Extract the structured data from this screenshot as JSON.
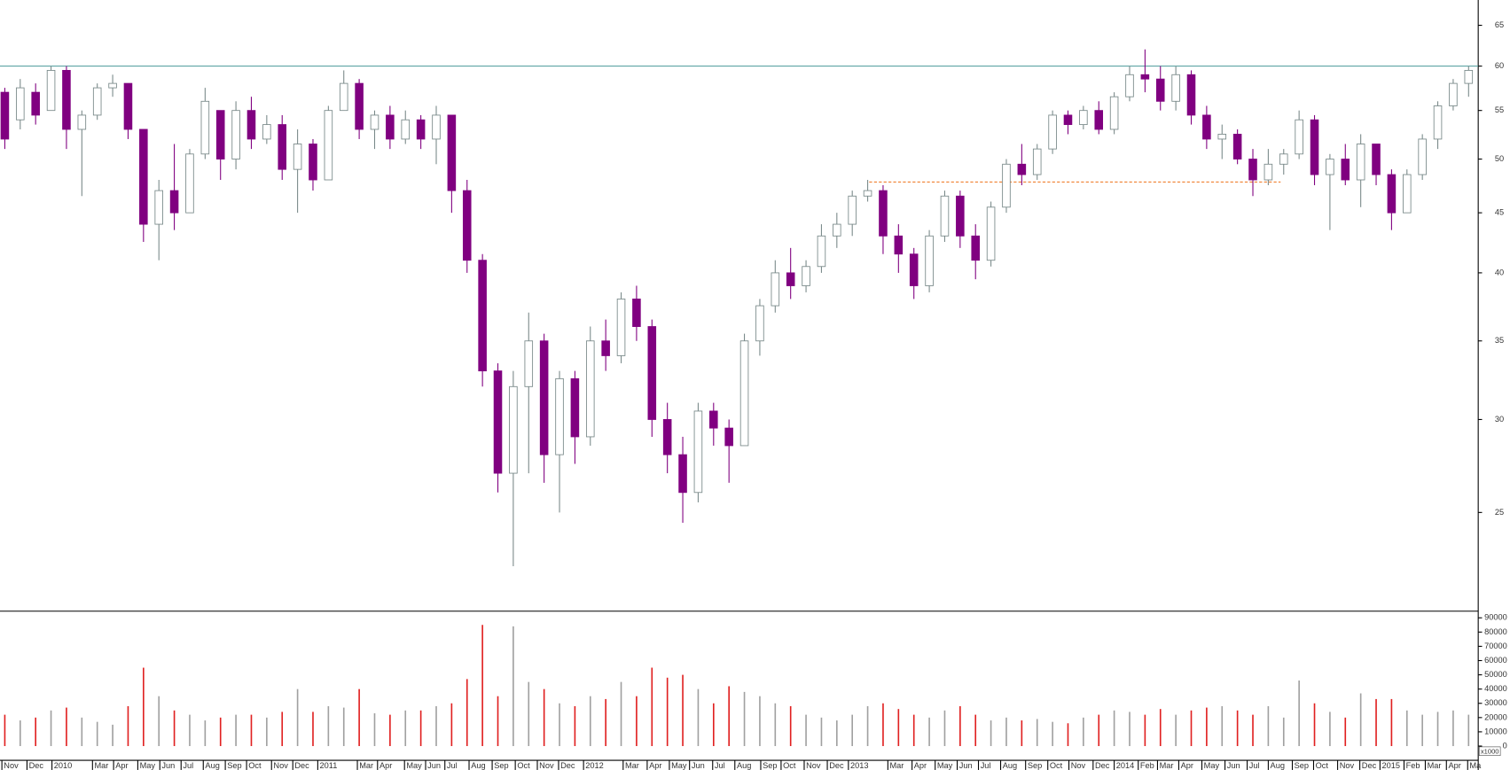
{
  "chart_data": [
    {
      "type": "candlestick",
      "log": true,
      "xlim": [
        -0.3125,
        95.625
      ],
      "ylim": [
        20.6,
        68.3
      ],
      "yticks": [
        25,
        30,
        35,
        40,
        45,
        50,
        55,
        60,
        65
      ],
      "up_color": "#ffffff",
      "down_color": "#800080",
      "edge_color": "#7a8a8a",
      "open": [
        57,
        54,
        57,
        55,
        59.5,
        53,
        54.5,
        57.5,
        58,
        53,
        44,
        47,
        45,
        50.5,
        55,
        50,
        55,
        52,
        53.5,
        49,
        51.5,
        48,
        55,
        58,
        53,
        54.5,
        52,
        54,
        52,
        54.5,
        47,
        41,
        33,
        27,
        32,
        35,
        28,
        32.5,
        29,
        35,
        34,
        38,
        36,
        30,
        28,
        26,
        30.5,
        29.5,
        28.5,
        35,
        37.5,
        40,
        39,
        40.5,
        43,
        44,
        46.5,
        47,
        43,
        41.5,
        39,
        43,
        46.5,
        43,
        41,
        45.5,
        49.5,
        48.5,
        51,
        54.5,
        53.5,
        55,
        53,
        56.5,
        59,
        58.5,
        56,
        59,
        54.5,
        52,
        52.5,
        50,
        48,
        49.5,
        50.5,
        54,
        48.5,
        50,
        48,
        51.5,
        48.5,
        45,
        48.5,
        52,
        55.5,
        58
      ],
      "high": [
        57.5,
        58.5,
        58,
        60,
        60,
        55,
        58,
        59,
        58,
        53,
        48,
        51.5,
        51,
        57.5,
        55,
        56,
        56.5,
        54.5,
        54.5,
        53,
        52,
        55.5,
        59.5,
        58.5,
        55,
        55.5,
        55,
        54.5,
        55.5,
        54.5,
        48,
        41.5,
        33.5,
        33,
        37,
        35.5,
        33,
        33,
        36,
        36.5,
        38.5,
        39,
        36.5,
        31,
        29,
        31,
        31,
        30,
        35.5,
        38,
        41,
        42,
        41,
        44,
        45,
        47,
        48,
        47.5,
        44,
        42,
        43.5,
        47,
        47,
        44,
        46,
        50,
        51.5,
        51.5,
        55,
        55,
        55.5,
        56,
        57,
        60,
        62,
        60,
        60,
        59.5,
        55.5,
        53.5,
        53,
        51,
        51,
        51,
        55,
        54.5,
        50.5,
        51.5,
        52.5,
        51.5,
        49,
        49,
        52.5,
        56,
        58.5,
        60
      ],
      "low": [
        51,
        53,
        53.5,
        55,
        51,
        46.5,
        54,
        56.5,
        52,
        42.5,
        41,
        43.5,
        45,
        50,
        48,
        49,
        51,
        51.5,
        48,
        45,
        47,
        48,
        55,
        52,
        51,
        51,
        51.5,
        51,
        49.5,
        45,
        40,
        32,
        26,
        22.5,
        27,
        26.5,
        25,
        27.5,
        28.5,
        33,
        33.5,
        35,
        29,
        27,
        24.5,
        25.5,
        28.5,
        26.5,
        28.5,
        34,
        37,
        38,
        38.5,
        40,
        42,
        43,
        46,
        41.5,
        40,
        38,
        38.5,
        42.5,
        42,
        39.5,
        40.5,
        45,
        47.5,
        48,
        50.5,
        52.5,
        53,
        52.5,
        52.5,
        56,
        57,
        55,
        55,
        53.5,
        51,
        50,
        49.5,
        46.5,
        47.5,
        48.5,
        50,
        47.5,
        43.5,
        47.5,
        45.5,
        47.5,
        43.5,
        45,
        48,
        51,
        55,
        56.5
      ],
      "close": [
        52,
        57.5,
        54.5,
        59.5,
        53,
        54.5,
        57.5,
        58,
        53,
        44,
        47,
        45,
        50.5,
        56,
        50,
        55,
        52,
        53.5,
        49,
        51.5,
        48,
        55,
        58,
        53,
        54.5,
        52,
        54,
        52,
        54.5,
        47,
        41,
        33,
        27,
        32,
        35,
        28,
        32.5,
        29,
        35,
        34,
        38,
        36,
        30,
        28,
        26,
        30.5,
        29.5,
        28.5,
        35,
        37.5,
        40,
        39,
        40.5,
        43,
        44,
        46.5,
        47,
        43,
        41.5,
        39,
        43,
        46.5,
        43,
        41,
        45.5,
        49.5,
        48.5,
        51,
        54.5,
        53.5,
        55,
        53,
        56.5,
        59,
        58.5,
        56,
        59,
        54.5,
        52,
        52.5,
        50,
        48,
        49.5,
        50.5,
        54,
        48.5,
        50,
        48,
        51.5,
        48.5,
        45,
        48.5,
        52,
        55.5,
        58,
        59.5
      ],
      "lines": [
        {
          "value": 60,
          "color": "#4a9a9a"
        },
        {
          "value": 47.8,
          "from": 56.1,
          "to": 82.8,
          "color": "#f08030",
          "dashed": true
        }
      ]
    },
    {
      "type": "bar",
      "xlim": [
        -0.3125,
        95.625
      ],
      "ylim": [
        -10000,
        94000
      ],
      "yticks": [
        0,
        10000,
        20000,
        30000,
        40000,
        50000,
        60000,
        70000,
        80000,
        90000
      ],
      "unit_label": "x1000",
      "up_color": "#a0a0a0",
      "down_color": "#e02020",
      "values": [
        22000,
        18000,
        20000,
        25000,
        27000,
        20000,
        17000,
        15000,
        28000,
        55000,
        35000,
        25000,
        22000,
        18000,
        20000,
        22000,
        22000,
        20000,
        24000,
        40000,
        24000,
        28000,
        27000,
        40000,
        23000,
        22000,
        25000,
        25000,
        28000,
        30000,
        47000,
        85000,
        35000,
        84000,
        45000,
        40000,
        30000,
        28000,
        35000,
        33000,
        45000,
        35000,
        55000,
        48000,
        50000,
        40000,
        30000,
        42000,
        38000,
        35000,
        30000,
        28000,
        22000,
        20000,
        18000,
        22000,
        28000,
        30000,
        26000,
        22000,
        20000,
        25000,
        28000,
        22000,
        18000,
        20000,
        18000,
        19000,
        17000,
        16000,
        20000,
        22000,
        25000,
        24000,
        22000,
        26000,
        22000,
        25000,
        27000,
        28000,
        25000,
        22000,
        28000,
        20000,
        46000,
        30000,
        24000,
        20000,
        37000,
        33000,
        33000,
        25000,
        22000,
        24000,
        25000,
        22000
      ],
      "xticks": [
        {
          "value": -0.19,
          "label": "Nov"
        },
        {
          "value": 1.44,
          "label": "Dec"
        },
        {
          "value": 3.06,
          "label": "2010"
        },
        {
          "value": 5.69,
          "label": "Mar"
        },
        {
          "value": 7.06,
          "label": "Apr"
        },
        {
          "value": 8.63,
          "label": "May"
        },
        {
          "value": 10.06,
          "label": "Jun"
        },
        {
          "value": 11.44,
          "label": "Jul"
        },
        {
          "value": 12.88,
          "label": "Aug"
        },
        {
          "value": 14.31,
          "label": "Sep"
        },
        {
          "value": 15.69,
          "label": "Oct"
        },
        {
          "value": 17.31,
          "label": "Nov"
        },
        {
          "value": 18.69,
          "label": "Dec"
        },
        {
          "value": 20.31,
          "label": "2011"
        },
        {
          "value": 22.88,
          "label": "Mar"
        },
        {
          "value": 24.19,
          "label": "Apr"
        },
        {
          "value": 25.94,
          "label": "May"
        },
        {
          "value": 27.31,
          "label": "Jun"
        },
        {
          "value": 28.56,
          "label": "Jul"
        },
        {
          "value": 30.13,
          "label": "Aug"
        },
        {
          "value": 31.63,
          "label": "Sep"
        },
        {
          "value": 33.13,
          "label": "Oct"
        },
        {
          "value": 34.56,
          "label": "Nov"
        },
        {
          "value": 35.94,
          "label": "Dec"
        },
        {
          "value": 37.56,
          "label": "2012"
        },
        {
          "value": 40.13,
          "label": "Mar"
        },
        {
          "value": 41.69,
          "label": "Apr"
        },
        {
          "value": 43.13,
          "label": "May"
        },
        {
          "value": 44.44,
          "label": "Jun"
        },
        {
          "value": 45.94,
          "label": "Jul"
        },
        {
          "value": 47.38,
          "label": "Aug"
        },
        {
          "value": 49.06,
          "label": "Sep"
        },
        {
          "value": 50.38,
          "label": "Oct"
        },
        {
          "value": 51.88,
          "label": "Nov"
        },
        {
          "value": 53.38,
          "label": "Dec"
        },
        {
          "value": 54.75,
          "label": "2013"
        },
        {
          "value": 57.31,
          "label": "Mar"
        },
        {
          "value": 58.88,
          "label": "Apr"
        },
        {
          "value": 60.38,
          "label": "May"
        },
        {
          "value": 61.81,
          "label": "Jun"
        },
        {
          "value": 63.19,
          "label": "Jul"
        },
        {
          "value": 64.63,
          "label": "Aug"
        },
        {
          "value": 66.25,
          "label": "Sep"
        },
        {
          "value": 67.69,
          "label": "Oct"
        },
        {
          "value": 69.06,
          "label": "Nov"
        },
        {
          "value": 70.63,
          "label": "Dec"
        },
        {
          "value": 72,
          "label": "2014"
        },
        {
          "value": 73.56,
          "label": "Feb"
        },
        {
          "value": 74.81,
          "label": "Mar"
        },
        {
          "value": 76.19,
          "label": "Apr"
        },
        {
          "value": 77.69,
          "label": "May"
        },
        {
          "value": 79.19,
          "label": "Jun"
        },
        {
          "value": 80.63,
          "label": "Jul"
        },
        {
          "value": 82,
          "label": "Aug"
        },
        {
          "value": 83.56,
          "label": "Sep"
        },
        {
          "value": 84.94,
          "label": "Oct"
        },
        {
          "value": 86.5,
          "label": "Nov"
        },
        {
          "value": 87.94,
          "label": "Dec"
        },
        {
          "value": 89.25,
          "label": "2015"
        },
        {
          "value": 90.81,
          "label": "Feb"
        },
        {
          "value": 92.19,
          "label": "Mar"
        },
        {
          "value": 93.56,
          "label": "Apr"
        },
        {
          "value": 94.94,
          "label": "Ma"
        }
      ]
    }
  ]
}
